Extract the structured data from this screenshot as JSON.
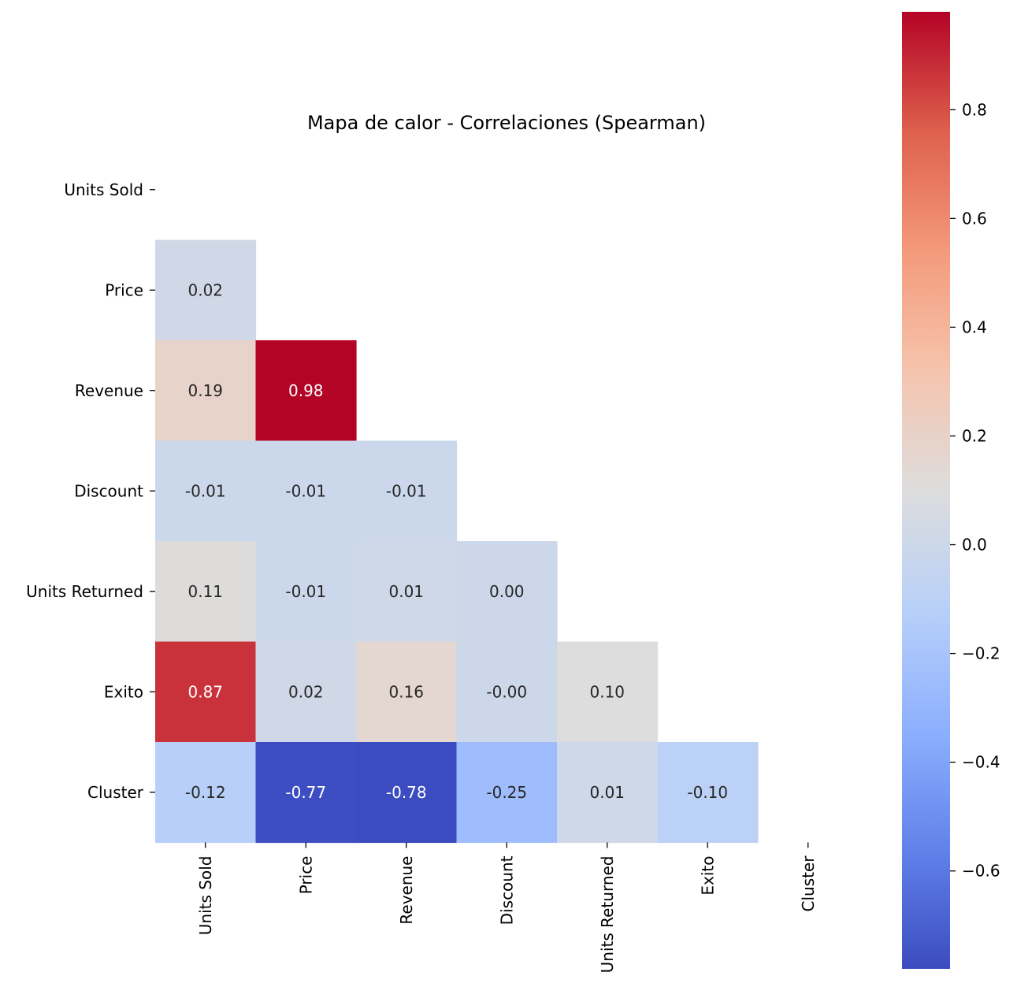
{
  "chart_data": {
    "type": "heatmap",
    "title": "Mapa de calor - Correlaciones (Spearman)",
    "xlabel": "",
    "ylabel": "",
    "row_labels": [
      "Units Sold",
      "Price",
      "Revenue",
      "Discount",
      "Units Returned",
      "Exito",
      "Cluster"
    ],
    "col_labels": [
      "Units Sold",
      "Price",
      "Revenue",
      "Discount",
      "Units Returned",
      "Exito",
      "Cluster"
    ],
    "mask": "upper-triangle-including-diagonal",
    "cells": [
      {
        "row": 1,
        "col": 0,
        "value": 0.02,
        "label": "0.02"
      },
      {
        "row": 2,
        "col": 0,
        "value": 0.19,
        "label": "0.19"
      },
      {
        "row": 2,
        "col": 1,
        "value": 0.98,
        "label": "0.98"
      },
      {
        "row": 3,
        "col": 0,
        "value": -0.01,
        "label": "-0.01"
      },
      {
        "row": 3,
        "col": 1,
        "value": -0.01,
        "label": "-0.01"
      },
      {
        "row": 3,
        "col": 2,
        "value": -0.01,
        "label": "-0.01"
      },
      {
        "row": 4,
        "col": 0,
        "value": 0.11,
        "label": "0.11"
      },
      {
        "row": 4,
        "col": 1,
        "value": -0.01,
        "label": "-0.01"
      },
      {
        "row": 4,
        "col": 2,
        "value": 0.01,
        "label": "0.01"
      },
      {
        "row": 4,
        "col": 3,
        "value": 0.0,
        "label": "0.00"
      },
      {
        "row": 5,
        "col": 0,
        "value": 0.87,
        "label": "0.87"
      },
      {
        "row": 5,
        "col": 1,
        "value": 0.02,
        "label": "0.02"
      },
      {
        "row": 5,
        "col": 2,
        "value": 0.16,
        "label": "0.16"
      },
      {
        "row": 5,
        "col": 3,
        "value": -0.0,
        "label": "-0.00"
      },
      {
        "row": 5,
        "col": 4,
        "value": 0.1,
        "label": "0.10"
      },
      {
        "row": 6,
        "col": 0,
        "value": -0.12,
        "label": "-0.12"
      },
      {
        "row": 6,
        "col": 1,
        "value": -0.77,
        "label": "-0.77"
      },
      {
        "row": 6,
        "col": 2,
        "value": -0.78,
        "label": "-0.78"
      },
      {
        "row": 6,
        "col": 3,
        "value": -0.25,
        "label": "-0.25"
      },
      {
        "row": 6,
        "col": 4,
        "value": 0.01,
        "label": "0.01"
      },
      {
        "row": 6,
        "col": 5,
        "value": -0.1,
        "label": "-0.10"
      }
    ],
    "colorbar": {
      "colormap": "coolwarm",
      "vmin": -0.78,
      "vmax": 0.98,
      "ticks": [
        0.8,
        0.6,
        0.4,
        0.2,
        0.0,
        -0.2,
        -0.4,
        -0.6
      ],
      "tick_labels": [
        "0.8",
        "0.6",
        "0.4",
        "0.2",
        "0.0",
        "−0.2",
        "−0.4",
        "−0.6"
      ]
    },
    "colors": {
      "text_dark": "#262626",
      "text_light": "#ffffff",
      "axis": "#000000"
    }
  }
}
